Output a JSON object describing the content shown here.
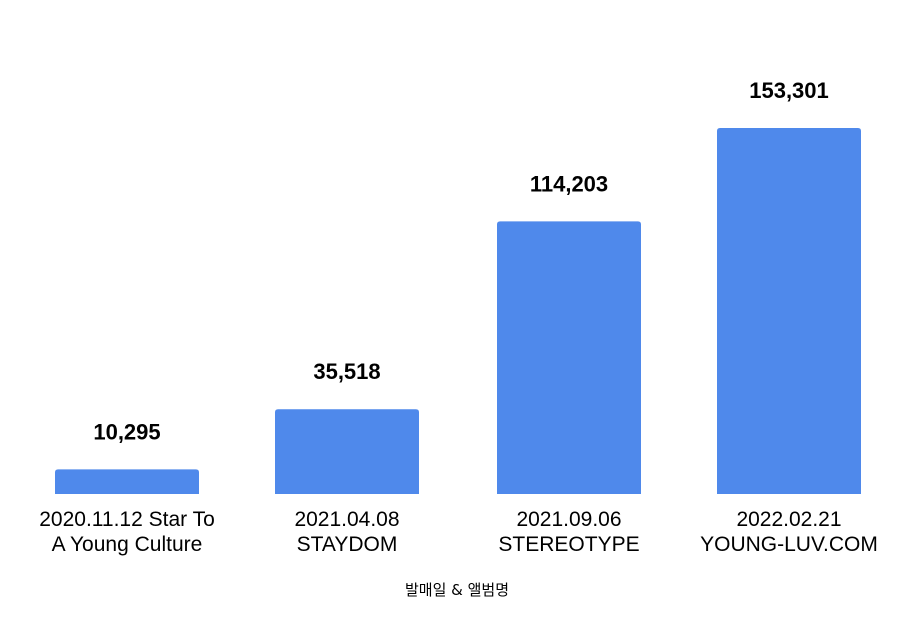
{
  "chart_data": {
    "type": "bar",
    "categories": [
      [
        "2020.11.12 Star To",
        "A Young Culture"
      ],
      [
        "2021.04.08",
        "STAYDOM"
      ],
      [
        "2021.09.06",
        "STEREOTYPE"
      ],
      [
        "2022.02.21",
        "YOUNG-LUV.COM"
      ]
    ],
    "values": [
      10295,
      35518,
      114203,
      153301
    ],
    "value_labels": [
      "10,295",
      "35,518",
      "114,203",
      "153,301"
    ],
    "title": "",
    "xlabel": "발매일 & 앨범명",
    "ylabel": "",
    "ylim": [
      0,
      170000
    ],
    "grid": false,
    "legend": "none",
    "bar_color": "#4f89eb"
  }
}
